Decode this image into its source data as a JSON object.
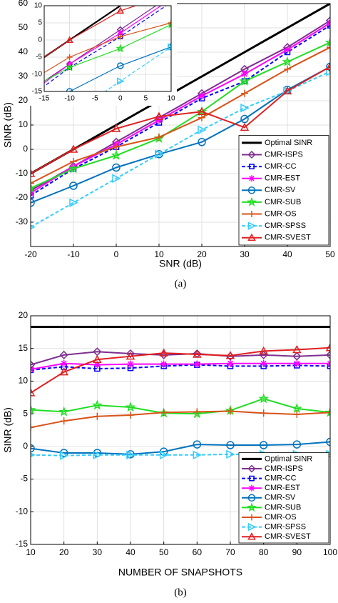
{
  "chart_data": [
    {
      "type": "line",
      "x_label": "SNR (dB)",
      "y_label": "SINR (dB)",
      "caption": "(a)",
      "x": [
        -20,
        -10,
        0,
        10,
        20,
        30,
        40,
        50
      ],
      "xlim": [
        -20,
        50
      ],
      "xticks": [
        -20,
        -10,
        0,
        10,
        20,
        30,
        40,
        50
      ],
      "ylim": [
        -40,
        60
      ],
      "yticks": [
        -30,
        -20,
        -10,
        0,
        10,
        20,
        30,
        40,
        50,
        60
      ],
      "grid": true,
      "legend": "lower right",
      "series": [
        {
          "name": "Optimal SINR",
          "color": "#000000",
          "values": [
            -10,
            0,
            10,
            20,
            30,
            40,
            50,
            60
          ]
        },
        {
          "name": "CMR-ISPS",
          "color": "#7e2f8e",
          "marker": "diamond",
          "values": [
            -17,
            -7,
            3,
            13,
            23,
            33,
            42,
            53
          ]
        },
        {
          "name": "CMR-CC",
          "color": "#0000ff",
          "marker": "square",
          "dash": true,
          "values": [
            -19,
            -8,
            1,
            11,
            21,
            28,
            40,
            51
          ]
        },
        {
          "name": "CMR-EST",
          "color": "#ff00ff",
          "marker": "asterisk",
          "values": [
            -18,
            -7,
            2,
            12,
            22,
            31,
            41,
            52
          ]
        },
        {
          "name": "CMR-SV",
          "color": "#0072bd",
          "marker": "circle",
          "values": [
            -22,
            -15,
            -7.5,
            -2,
            3,
            12.5,
            24.5,
            34
          ]
        },
        {
          "name": "CMR-SUB",
          "color": "#22dd22",
          "marker": "star",
          "values": [
            -16,
            -8,
            -2.5,
            4.5,
            15.5,
            28,
            36,
            44
          ]
        },
        {
          "name": "CMR-OS",
          "color": "#d95319",
          "marker": "plus",
          "values": [
            -14,
            -5,
            1,
            5,
            13,
            23,
            33,
            42
          ]
        },
        {
          "name": "CMR-SPSS",
          "color": "#33ccff",
          "marker": "triangle-right",
          "dash": true,
          "values": [
            -32,
            -22,
            -12,
            -2,
            8,
            17,
            24,
            32
          ]
        },
        {
          "name": "CMR-SVEST",
          "color": "#e02020",
          "marker": "triangle-up",
          "values": [
            -10,
            0,
            8.5,
            13.5,
            15.5,
            9,
            24,
            34
          ]
        }
      ],
      "inset": {
        "xlim": [
          -15,
          10
        ],
        "xticks": [
          -15,
          -10,
          -5,
          0,
          5,
          10
        ],
        "ylim": [
          -15,
          10
        ],
        "yticks": [
          -15,
          -10,
          -5,
          0,
          5,
          10
        ]
      }
    },
    {
      "type": "line",
      "x_label": "NUMBER OF SNAPSHOTS",
      "y_label": "SINR (dB)",
      "caption": "(b)",
      "x": [
        10,
        20,
        30,
        40,
        50,
        60,
        70,
        80,
        90,
        100
      ],
      "xlim": [
        10,
        100
      ],
      "xticks": [
        10,
        20,
        30,
        40,
        50,
        60,
        70,
        80,
        90,
        100
      ],
      "ylim": [
        -15,
        20
      ],
      "yticks": [
        -15,
        -10,
        -5,
        0,
        5,
        10,
        15,
        20
      ],
      "grid": true,
      "legend": "lower right",
      "series": [
        {
          "name": "Optimal SINR",
          "color": "#000000",
          "values": [
            18.3,
            18.3,
            18.3,
            18.3,
            18.3,
            18.3,
            18.3,
            18.3,
            18.3,
            18.3
          ]
        },
        {
          "name": "CMR-ISPS",
          "color": "#7e2f8e",
          "marker": "diamond",
          "values": [
            12.5,
            14,
            14.5,
            14.2,
            14,
            14.2,
            13.8,
            14,
            13.8,
            14
          ]
        },
        {
          "name": "CMR-CC",
          "color": "#0000ff",
          "marker": "square",
          "dash": true,
          "values": [
            11.7,
            12.2,
            11.9,
            12,
            12.3,
            12.5,
            12.3,
            12.3,
            12.4,
            12.3
          ]
        },
        {
          "name": "CMR-EST",
          "color": "#ff00ff",
          "marker": "asterisk",
          "values": [
            11.8,
            12.7,
            12.5,
            12.6,
            12.6,
            12.6,
            12.7,
            12.7,
            12.7,
            12.7
          ]
        },
        {
          "name": "CMR-SV",
          "color": "#0072bd",
          "marker": "circle",
          "values": [
            -0.3,
            -1,
            -1,
            -1.2,
            -0.8,
            0.3,
            0.2,
            0.2,
            0.3,
            0.7
          ]
        },
        {
          "name": "CMR-SUB",
          "color": "#22dd22",
          "marker": "star",
          "values": [
            5.6,
            5.3,
            6.3,
            6,
            5.1,
            5,
            5.5,
            7.3,
            5.8,
            5.2
          ]
        },
        {
          "name": "CMR-OS",
          "color": "#d95319",
          "marker": "plus",
          "values": [
            2.9,
            3.9,
            4.6,
            4.8,
            5.2,
            5.3,
            5.4,
            5.1,
            4.9,
            5.2
          ]
        },
        {
          "name": "CMR-SPSS",
          "color": "#33ccff",
          "marker": "triangle-right",
          "dash": true,
          "values": [
            -1.3,
            -1.4,
            -1.3,
            -1.3,
            -1.3,
            -1.3,
            -1.2,
            -1.2,
            -1.2,
            -1.2
          ]
        },
        {
          "name": "CMR-SVEST",
          "color": "#e02020",
          "marker": "triangle-up",
          "values": [
            8.2,
            11.4,
            13.3,
            13.8,
            14.3,
            14.1,
            13.9,
            14.6,
            14.8,
            15.1
          ]
        }
      ]
    }
  ]
}
